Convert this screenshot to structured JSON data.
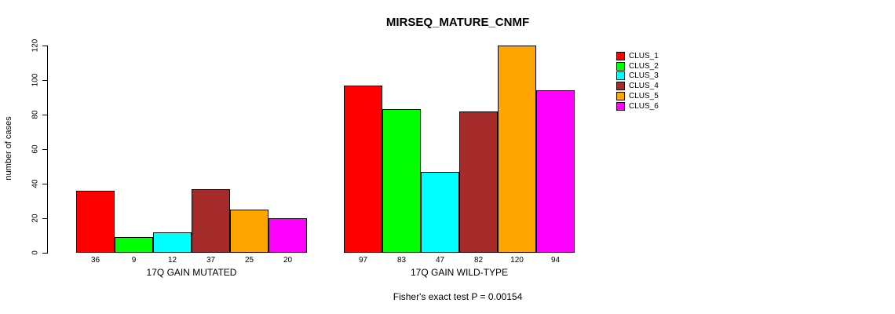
{
  "chart_data": {
    "type": "bar",
    "title": "MIRSEQ_MATURE_CNMF",
    "ylabel": "number of cases",
    "ylim": [
      0,
      120
    ],
    "yticks": [
      0,
      20,
      40,
      60,
      80,
      100,
      120
    ],
    "grid": false,
    "legend_position": "right",
    "legend": [
      {
        "label": "CLUS_1",
        "color": "#FF0000"
      },
      {
        "label": "CLUS_2",
        "color": "#00FF00"
      },
      {
        "label": "CLUS_3",
        "color": "#00FFFF"
      },
      {
        "label": "CLUS_4",
        "color": "#A52A2A"
      },
      {
        "label": "CLUS_5",
        "color": "#FFA500"
      },
      {
        "label": "CLUS_6",
        "color": "#FF00FF"
      }
    ],
    "groups": [
      {
        "label": "17Q GAIN MUTATED",
        "values": [
          36,
          9,
          12,
          37,
          25,
          20
        ]
      },
      {
        "label": "17Q GAIN WILD-TYPE",
        "values": [
          97,
          83,
          47,
          82,
          120,
          94
        ]
      }
    ],
    "annotation": "Fisher's exact test P = 0.00154"
  }
}
